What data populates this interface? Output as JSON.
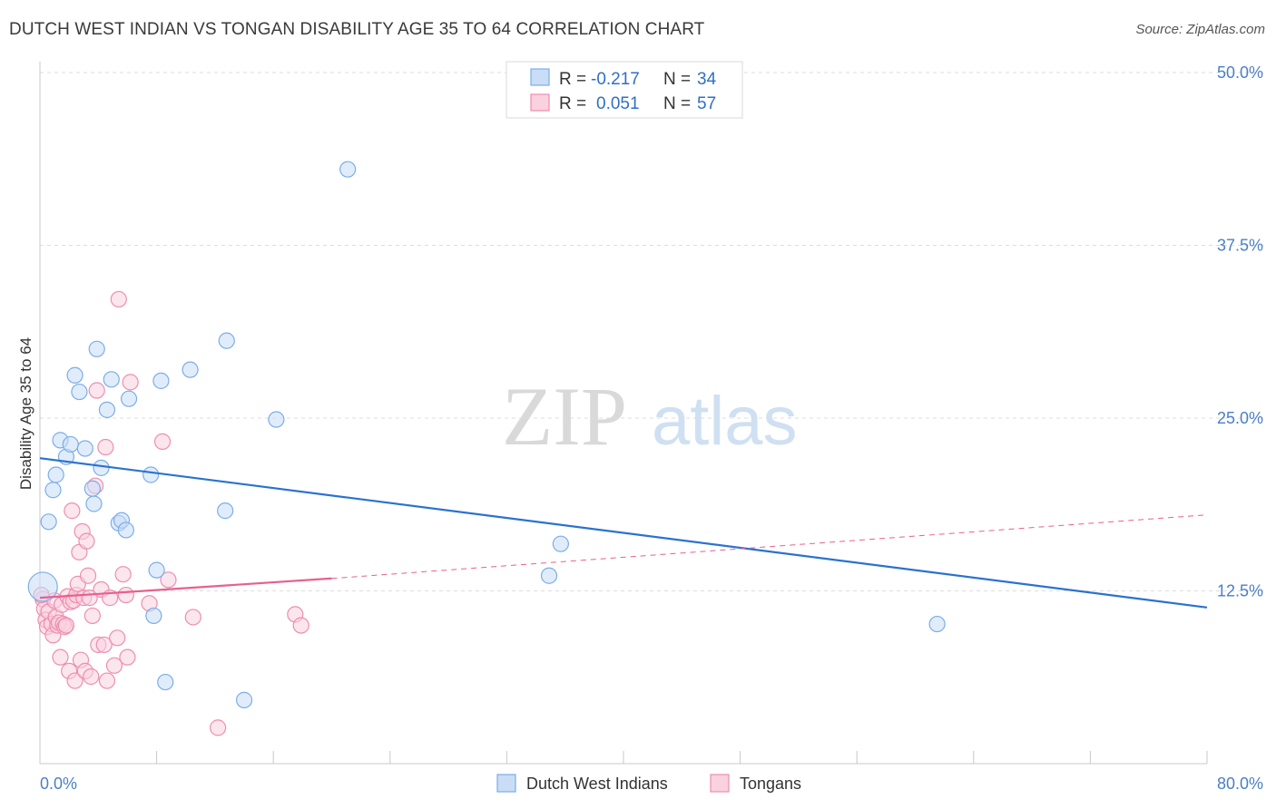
{
  "title": "DUTCH WEST INDIAN VS TONGAN DISABILITY AGE 35 TO 64 CORRELATION CHART",
  "source": "Source: ZipAtlas.com",
  "watermark": {
    "zip": "ZIP",
    "atlas": "atlas"
  },
  "colors": {
    "blue": "#7aaee8",
    "blue_fill": "#c9ddf7",
    "blue_line": "#2a72d0",
    "pink": "#ee8eaf",
    "pink_fill": "#f9d1df",
    "pink_line": "#e8608c",
    "grid": "#dddddd",
    "axis_text": "#4a7fc8"
  },
  "legend": {
    "rows": [
      {
        "r_label": "R =",
        "r_value": "-0.217",
        "n_label": "N =",
        "n_value": "34"
      },
      {
        "r_label": "R =",
        "r_value": "0.051",
        "n_label": "N =",
        "n_value": "57"
      }
    ]
  },
  "chart_data": {
    "type": "scatter",
    "title": "DUTCH WEST INDIAN VS TONGAN DISABILITY AGE 35 TO 64 CORRELATION CHART",
    "xlabel": "",
    "ylabel": "Disability Age 35 to 64",
    "xlim": [
      0,
      80
    ],
    "ylim": [
      0,
      50
    ],
    "x_tick_labels": [
      "0.0%",
      "80.0%"
    ],
    "y_tick_labels": [
      "12.5%",
      "25.0%",
      "37.5%",
      "50.0%"
    ],
    "y_ticks": [
      12.5,
      25,
      37.5,
      50
    ],
    "grid": true,
    "legend_position": "top-center",
    "series": [
      {
        "name": "Dutch West Indians",
        "color": "#7aaee8",
        "points": [
          [
            0.2,
            12.8
          ],
          [
            0.6,
            17.5
          ],
          [
            0.9,
            19.8
          ],
          [
            1.1,
            20.9
          ],
          [
            1.4,
            23.4
          ],
          [
            1.8,
            22.2
          ],
          [
            2.1,
            23.1
          ],
          [
            2.4,
            28.1
          ],
          [
            2.7,
            26.9
          ],
          [
            3.1,
            22.8
          ],
          [
            3.6,
            19.9
          ],
          [
            3.7,
            18.8
          ],
          [
            3.9,
            30.0
          ],
          [
            4.2,
            21.4
          ],
          [
            4.6,
            25.6
          ],
          [
            4.9,
            27.8
          ],
          [
            5.4,
            17.4
          ],
          [
            5.6,
            17.6
          ],
          [
            5.9,
            16.9
          ],
          [
            6.1,
            26.4
          ],
          [
            7.6,
            20.9
          ],
          [
            7.8,
            10.7
          ],
          [
            8.0,
            14.0
          ],
          [
            8.3,
            27.7
          ],
          [
            8.6,
            5.9
          ],
          [
            10.3,
            28.5
          ],
          [
            12.7,
            18.3
          ],
          [
            12.8,
            30.6
          ],
          [
            14.0,
            4.6
          ],
          [
            16.2,
            24.9
          ],
          [
            21.1,
            43.0
          ],
          [
            34.9,
            13.6
          ],
          [
            35.7,
            15.9
          ],
          [
            61.5,
            10.1
          ]
        ],
        "sizes": [
          30,
          15,
          15,
          15,
          15,
          15,
          15,
          15,
          15,
          15,
          15,
          15,
          15,
          15,
          15,
          15,
          15,
          15,
          15,
          15,
          15,
          15,
          15,
          15,
          15,
          15,
          15,
          15,
          15,
          15,
          15,
          15,
          15,
          15
        ],
        "trend": {
          "x": [
            0,
            80
          ],
          "y": [
            22.1,
            11.3
          ]
        }
      },
      {
        "name": "Tongans",
        "color": "#ee8eaf",
        "points": [
          [
            0.2,
            11.9
          ],
          [
            0.3,
            11.2
          ],
          [
            0.4,
            10.4
          ],
          [
            0.5,
            9.9
          ],
          [
            0.6,
            11.0
          ],
          [
            0.8,
            10.1
          ],
          [
            0.9,
            9.3
          ],
          [
            1.0,
            11.8
          ],
          [
            1.1,
            10.6
          ],
          [
            1.2,
            10.0
          ],
          [
            1.3,
            10.2
          ],
          [
            1.4,
            7.7
          ],
          [
            1.5,
            11.5
          ],
          [
            1.6,
            10.1
          ],
          [
            1.7,
            9.9
          ],
          [
            1.8,
            10.0
          ],
          [
            1.9,
            12.1
          ],
          [
            2.0,
            6.7
          ],
          [
            2.1,
            11.7
          ],
          [
            2.2,
            18.3
          ],
          [
            2.3,
            11.8
          ],
          [
            2.4,
            6.0
          ],
          [
            2.5,
            12.2
          ],
          [
            2.6,
            13.0
          ],
          [
            2.7,
            15.3
          ],
          [
            2.8,
            7.5
          ],
          [
            2.9,
            16.8
          ],
          [
            3.0,
            12.0
          ],
          [
            3.1,
            6.7
          ],
          [
            3.2,
            16.1
          ],
          [
            3.3,
            13.6
          ],
          [
            3.4,
            12.0
          ],
          [
            3.5,
            6.3
          ],
          [
            3.6,
            10.7
          ],
          [
            3.8,
            20.1
          ],
          [
            3.9,
            27.0
          ],
          [
            4.0,
            8.6
          ],
          [
            4.2,
            12.6
          ],
          [
            4.4,
            8.6
          ],
          [
            4.5,
            22.9
          ],
          [
            4.6,
            6.0
          ],
          [
            4.8,
            12.0
          ],
          [
            5.1,
            7.1
          ],
          [
            5.3,
            9.1
          ],
          [
            5.4,
            33.6
          ],
          [
            5.7,
            13.7
          ],
          [
            5.9,
            12.2
          ],
          [
            6.0,
            7.7
          ],
          [
            6.2,
            27.6
          ],
          [
            7.5,
            11.6
          ],
          [
            8.4,
            23.3
          ],
          [
            8.8,
            13.3
          ],
          [
            10.5,
            10.6
          ],
          [
            12.2,
            2.6
          ],
          [
            17.5,
            10.8
          ],
          [
            17.9,
            10.0
          ],
          [
            0.1,
            12.2
          ]
        ],
        "sizes": [
          15,
          15,
          15,
          15,
          15,
          15,
          15,
          15,
          15,
          15,
          15,
          15,
          15,
          15,
          15,
          15,
          15,
          15,
          15,
          15,
          15,
          15,
          15,
          15,
          15,
          15,
          15,
          15,
          15,
          15,
          15,
          15,
          15,
          15,
          15,
          15,
          15,
          15,
          15,
          15,
          15,
          15,
          15,
          15,
          15,
          15,
          15,
          15,
          15,
          15,
          15,
          15,
          15,
          15,
          15,
          15,
          15
        ],
        "trend": {
          "x": [
            0,
            20
          ],
          "y": [
            12.0,
            13.4
          ]
        },
        "trend_extension": {
          "x": [
            20,
            80
          ],
          "y": [
            13.4,
            18.0
          ]
        }
      }
    ]
  }
}
